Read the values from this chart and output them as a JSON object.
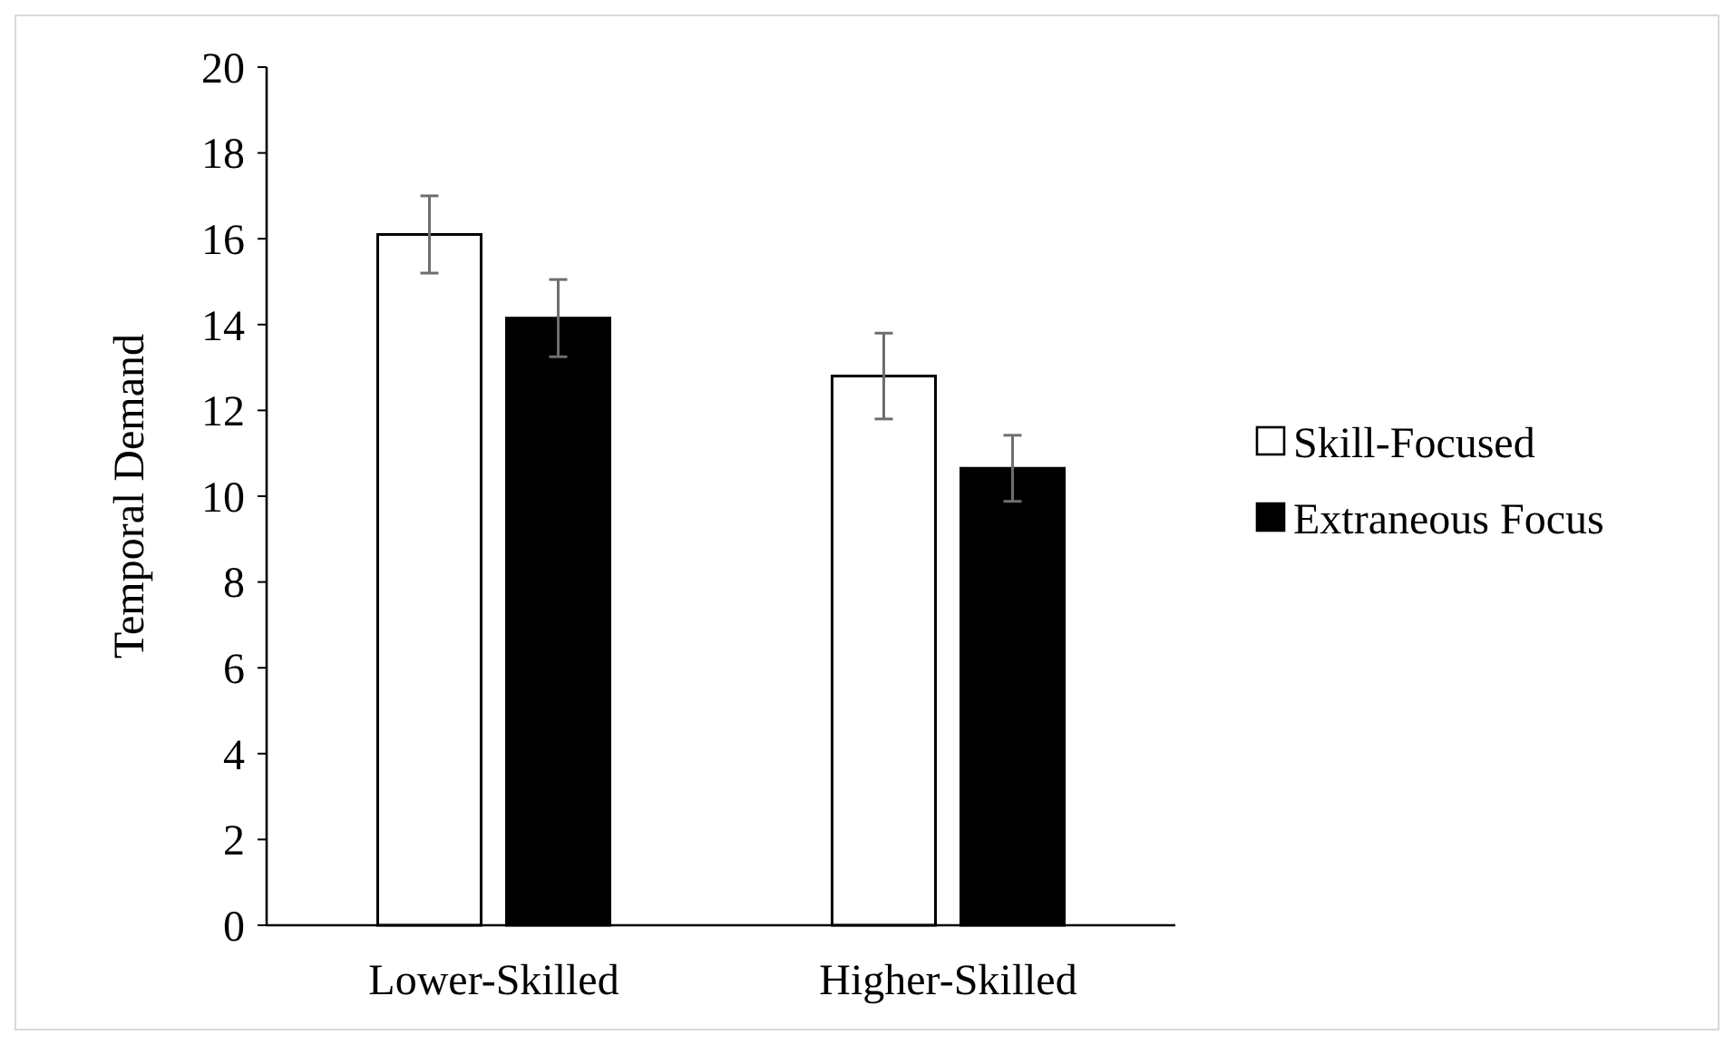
{
  "chart_data": {
    "type": "bar",
    "ylabel": "Temporal Demand",
    "categories": [
      "Lower-Skilled",
      "Higher-Skilled"
    ],
    "series": [
      {
        "name": "Skill-Focused",
        "color": "#ffffff",
        "values": [
          16.1,
          12.8
        ],
        "errors": [
          0.9,
          1.0
        ]
      },
      {
        "name": "Extraneous Focus",
        "color": "#000000",
        "values": [
          14.15,
          10.65
        ],
        "errors": [
          0.9,
          0.77
        ]
      }
    ],
    "ylim": [
      0,
      20
    ],
    "yticks": [
      0,
      2,
      4,
      6,
      8,
      10,
      12,
      14,
      16,
      18,
      20
    ],
    "grid": false,
    "legend": "right"
  }
}
